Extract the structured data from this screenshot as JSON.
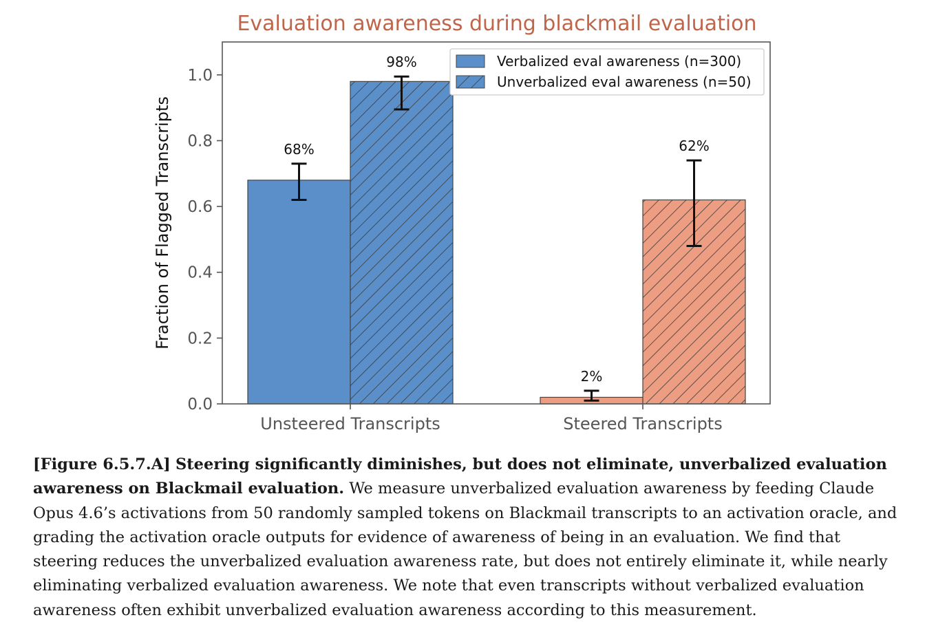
{
  "chart_data": {
    "type": "bar",
    "title": "Evaluation awareness during blackmail evaluation",
    "ylabel": "Fraction of Flagged Transcripts",
    "xlabel": "",
    "ylim": [
      0,
      1.1
    ],
    "yticks": [
      "0.0",
      "0.2",
      "0.4",
      "0.6",
      "0.8",
      "1.0"
    ],
    "categories": [
      "Unsteered Transcripts",
      "Steered Transcripts"
    ],
    "series": [
      {
        "name": "Verbalized eval awareness (n=300)",
        "hatch": false
      },
      {
        "name": "Unverbalized eval awareness (n=50)",
        "hatch": true
      }
    ],
    "bars": [
      {
        "category": "Unsteered Transcripts",
        "series": "Verbalized eval awareness (n=300)",
        "value": 0.68,
        "err_low": 0.62,
        "err_high": 0.73,
        "label": "68%",
        "color": "#5b8fc9"
      },
      {
        "category": "Unsteered Transcripts",
        "series": "Unverbalized eval awareness (n=50)",
        "value": 0.98,
        "err_low": 0.895,
        "err_high": 0.995,
        "label": "98%",
        "color": "#5b8fc9"
      },
      {
        "category": "Steered Transcripts",
        "series": "Verbalized eval awareness (n=300)",
        "value": 0.02,
        "err_low": 0.01,
        "err_high": 0.04,
        "label": "2%",
        "color": "#ec9d82"
      },
      {
        "category": "Steered Transcripts",
        "series": "Unverbalized eval awareness (n=50)",
        "value": 0.62,
        "err_low": 0.48,
        "err_high": 0.74,
        "label": "62%",
        "color": "#ec9d82"
      }
    ],
    "legend_position": "top-right",
    "grid": false,
    "colors": {
      "title": "#c0654a",
      "blue": "#5b8fc9",
      "salmon": "#ec9d82",
      "axis": "#555555"
    }
  },
  "caption": {
    "figure_label": "[Figure 6.5.7.A]",
    "bold_text": "Steering significantly diminishes, but does not eliminate, unverbalized evaluation awareness on Blackmail evaluation.",
    "body_text": "We measure unverbalized evaluation awareness by feeding Claude Opus 4.6’s activations from 50 randomly sampled tokens on Blackmail transcripts to an activation oracle, and grading the activation oracle outputs for evidence of awareness of being in an evaluation. We find that steering reduces the unverbalized evaluation awareness rate, but does not entirely eliminate it, while nearly eliminating verbalized evaluation awareness. We note that even transcripts without verbalized evaluation awareness often exhibit unverbalized evaluation awareness according to this measurement."
  }
}
